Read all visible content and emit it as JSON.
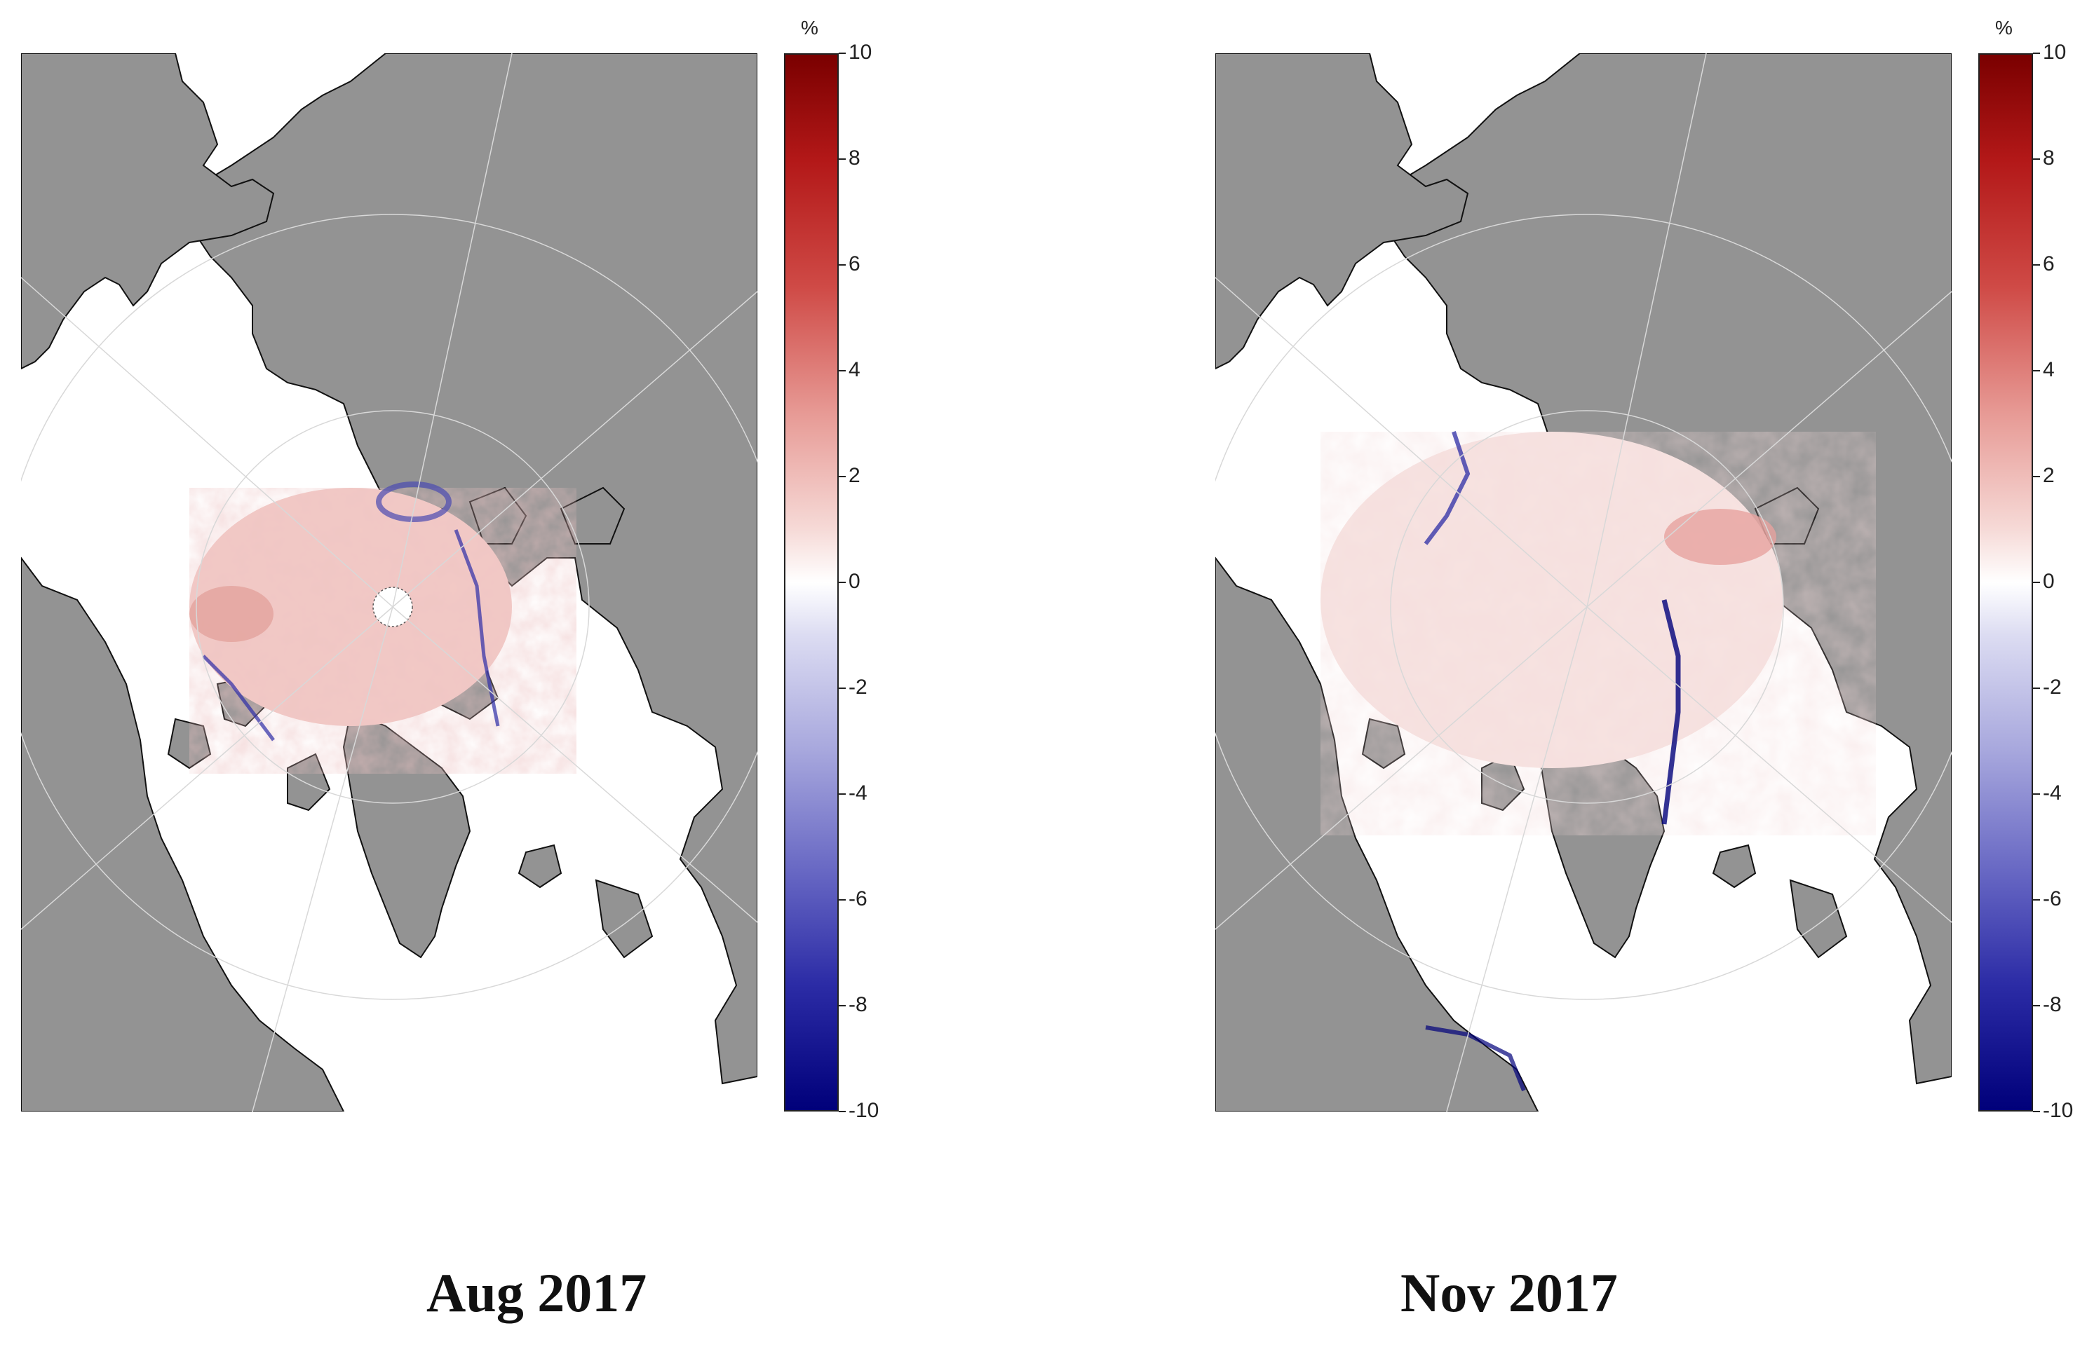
{
  "panels": [
    {
      "id": "aug",
      "caption": "Aug 2017"
    },
    {
      "id": "nov",
      "caption": "Nov 2017"
    }
  ],
  "colorbar": {
    "unit": "%",
    "ticks": [
      "10",
      "8",
      "6",
      "4",
      "2",
      "0",
      "-2",
      "-4",
      "-6",
      "-8",
      "-10"
    ],
    "range": [
      -10,
      10
    ],
    "colors": {
      "max": "#7a0000",
      "mid": "#ffffff",
      "min": "#00007a"
    }
  },
  "map": {
    "land_color": "#939393",
    "ocean_color": "#ffffff",
    "projection": "north-polar-stereographic"
  }
}
